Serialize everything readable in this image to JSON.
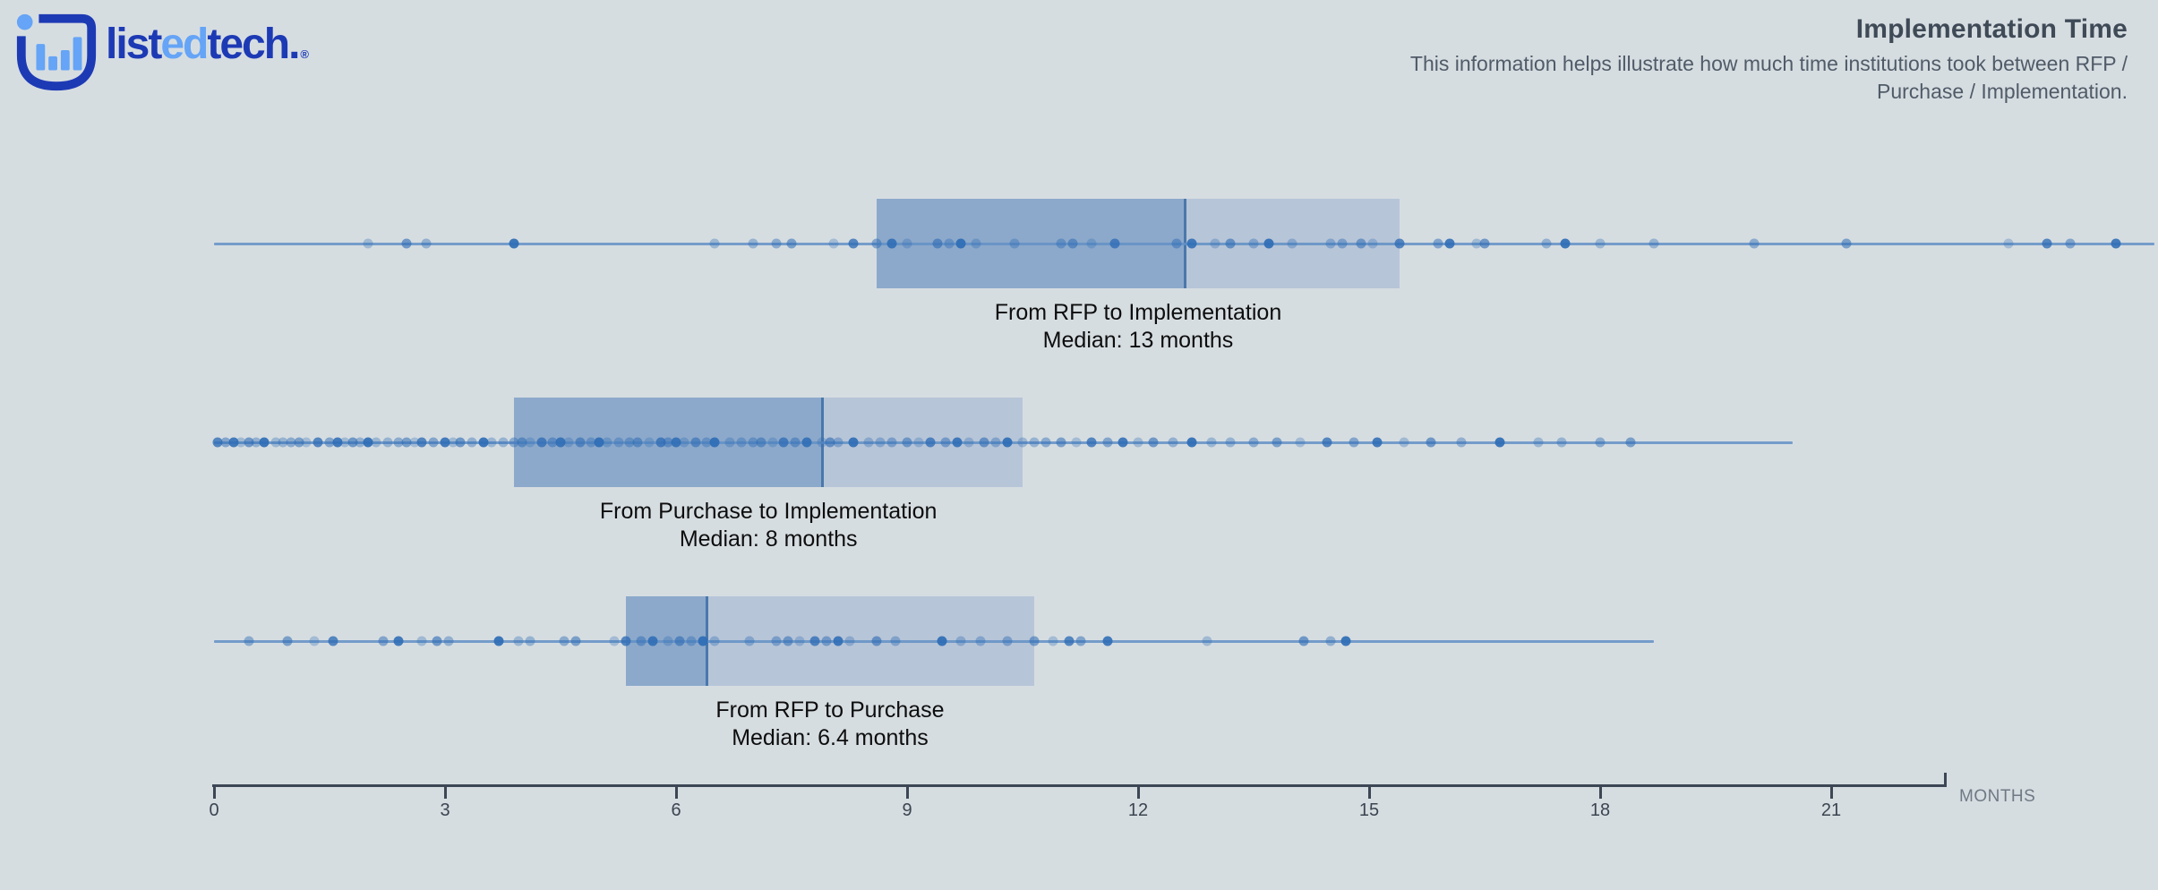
{
  "header": {
    "logo": {
      "parts": [
        {
          "text": "list",
          "color": "#1d3ab5"
        },
        {
          "text": "ed",
          "color": "#65a4f6"
        },
        {
          "text": "tech.",
          "color": "#1d3ab5"
        }
      ],
      "registered_mark": "®",
      "icon_dark": "#1d3ab5",
      "icon_light": "#65a4f6"
    },
    "title": "Implementation Time",
    "subtitle_lines": [
      "This information helps illustrate how much time institutions took between RFP /",
      "Purchase / Implementation."
    ]
  },
  "chart_data": {
    "type": "box",
    "orientation": "horizontal",
    "unit": "months",
    "axis": {
      "label": "MONTHS",
      "ticks": [
        0,
        3,
        6,
        9,
        12,
        15,
        18,
        21
      ],
      "range": [
        0,
        22.5
      ]
    },
    "colors": {
      "box_dark": "#8ca9cb",
      "box_light": "#b7c5d8",
      "median_line": "#4a78ab",
      "whisker": "#6391c5",
      "dot": "#2e6cb5",
      "background": "#d6dde1"
    },
    "series": [
      {
        "name": "From RFP to Implementation",
        "median_label": "Median: 13 months",
        "median": 13,
        "box": {
          "min": 0,
          "q1": 8.6,
          "median_line": 12.6,
          "q3": 15.4,
          "max": 25.2
        },
        "points": [
          2.0,
          2.5,
          2.75,
          3.9,
          6.5,
          7.0,
          7.3,
          7.5,
          8.05,
          8.3,
          8.6,
          8.8,
          9.0,
          9.4,
          9.55,
          9.7,
          9.9,
          10.4,
          11.0,
          11.15,
          11.4,
          11.7,
          12.5,
          12.7,
          13.0,
          13.2,
          13.5,
          13.7,
          14.0,
          14.5,
          14.65,
          14.9,
          15.05,
          15.4,
          15.9,
          16.05,
          16.4,
          16.5,
          17.3,
          17.55,
          18.0,
          18.7,
          20.0,
          21.2,
          23.3,
          23.8,
          24.1,
          24.7
        ]
      },
      {
        "name": "From Purchase to Implementation",
        "median_label": "Median: 8 months",
        "median": 8,
        "box": {
          "min": 0,
          "q1": 3.9,
          "median_line": 7.9,
          "q3": 10.5,
          "max": 20.5
        },
        "points": [
          0.05,
          0.15,
          0.25,
          0.35,
          0.45,
          0.55,
          0.65,
          0.8,
          0.9,
          1.0,
          1.1,
          1.2,
          1.35,
          1.5,
          1.6,
          1.7,
          1.8,
          1.9,
          2.0,
          2.1,
          2.25,
          2.4,
          2.5,
          2.6,
          2.7,
          2.85,
          3.0,
          3.1,
          3.2,
          3.35,
          3.5,
          3.6,
          3.75,
          3.9,
          4.0,
          4.1,
          4.25,
          4.4,
          4.5,
          4.6,
          4.75,
          4.9,
          5.0,
          5.1,
          5.25,
          5.4,
          5.5,
          5.65,
          5.8,
          5.9,
          6.0,
          6.1,
          6.25,
          6.4,
          6.5,
          6.7,
          6.85,
          7.0,
          7.1,
          7.25,
          7.4,
          7.55,
          7.7,
          7.9,
          8.0,
          8.1,
          8.3,
          8.5,
          8.65,
          8.8,
          9.0,
          9.15,
          9.3,
          9.5,
          9.65,
          9.8,
          10.0,
          10.15,
          10.3,
          10.5,
          10.65,
          10.8,
          11.0,
          11.2,
          11.4,
          11.6,
          11.8,
          12.0,
          12.2,
          12.45,
          12.7,
          12.95,
          13.2,
          13.5,
          13.8,
          14.1,
          14.45,
          14.8,
          15.1,
          15.45,
          15.8,
          16.2,
          16.7,
          17.2,
          17.5,
          18.0,
          18.4
        ]
      },
      {
        "name": "From RFP to Purchase",
        "median_label": "Median: 6.4 months",
        "median": 6.4,
        "box": {
          "min": 0,
          "q1": 5.35,
          "median_line": 6.4,
          "q3": 10.65,
          "max": 18.7
        },
        "points": [
          0.45,
          0.95,
          1.3,
          1.55,
          2.2,
          2.4,
          2.7,
          2.9,
          3.05,
          3.7,
          3.95,
          4.1,
          4.55,
          4.7,
          5.2,
          5.35,
          5.55,
          5.7,
          5.9,
          6.05,
          6.2,
          6.35,
          6.5,
          6.95,
          7.3,
          7.45,
          7.6,
          7.8,
          7.95,
          8.1,
          8.25,
          8.6,
          8.85,
          9.45,
          9.7,
          9.95,
          10.3,
          10.65,
          10.9,
          11.1,
          11.25,
          11.6,
          12.9,
          14.15,
          14.5,
          14.7
        ]
      }
    ]
  }
}
